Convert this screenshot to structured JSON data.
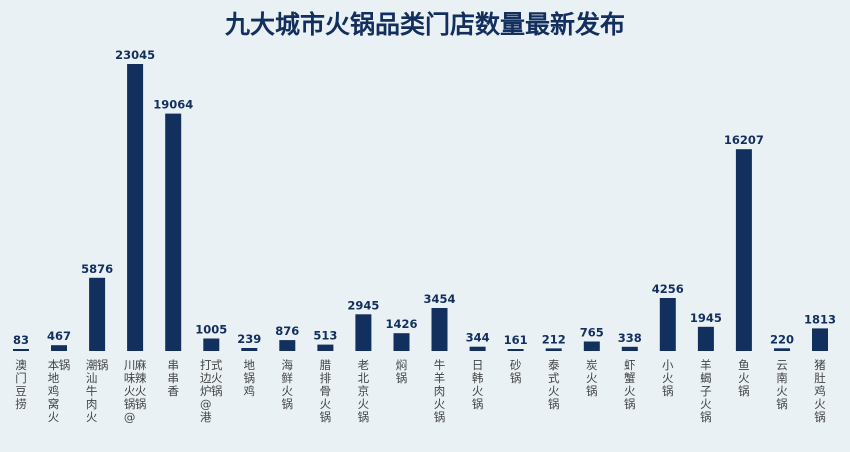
{
  "chart_data": {
    "type": "bar",
    "title": "九大城市火锅品类门店数量最新发布",
    "categories": [
      "澳门豆捞",
      "本地鸡窝火锅",
      "潮汕牛肉火锅",
      "川味火锅@麻辣火锅",
      "串串香",
      "打边炉@港式火锅",
      "地锅鸡",
      "海鲜火锅",
      "腊排骨火锅",
      "老北京火锅",
      "焖锅",
      "牛羊肉火锅",
      "日韩火锅",
      "砂锅",
      "泰式火锅",
      "炭火锅",
      "虾蟹火锅",
      "小火锅",
      "羊蝎子火锅",
      "鱼火锅",
      "云南火锅",
      "猪肚鸡火锅"
    ],
    "values": [
      83,
      467,
      5876,
      23045,
      19064,
      1005,
      239,
      876,
      513,
      2945,
      1426,
      3454,
      344,
      161,
      212,
      765,
      338,
      4256,
      1945,
      16207,
      220,
      1813
    ],
    "xlabel": "",
    "ylabel": "",
    "ylim": [
      0,
      23045
    ],
    "grid": false,
    "legend": "none",
    "colors": {
      "bar": "#132f5e",
      "title": "#132f5e",
      "value_label": "#132f5e",
      "category_label": "#444444"
    }
  }
}
